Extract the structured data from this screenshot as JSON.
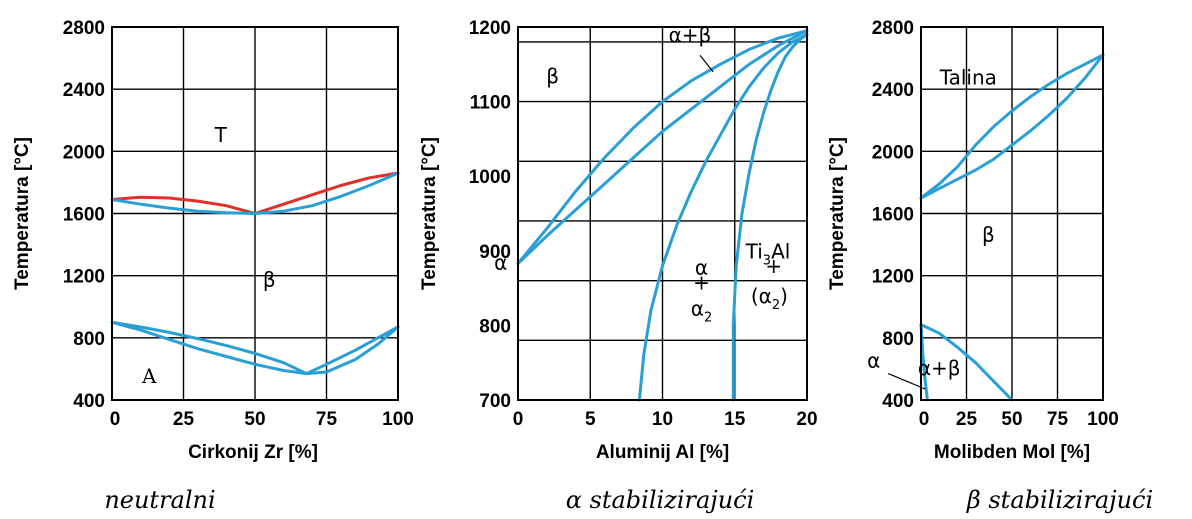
{
  "chart_data": [
    {
      "type": "line",
      "xlabel": "Cirkonij Zr [%]",
      "ylabel": "Temperatura [°C]",
      "xlim": [
        0,
        100
      ],
      "ylim": [
        400,
        2800
      ],
      "xticks": [
        0,
        25,
        50,
        75,
        100
      ],
      "xtick_labels": [
        "0",
        "25",
        "50",
        "75",
        "100"
      ],
      "yticks": [
        400,
        800,
        1200,
        1600,
        2000,
        2400,
        2800
      ],
      "ytick_labels": [
        "400",
        "800",
        "1200",
        "1600",
        "2000",
        "2400",
        "2800"
      ],
      "grid": true,
      "caption": "neutralni",
      "series": [
        {
          "color": "#e0302a",
          "x": [
            0,
            10,
            20,
            30,
            40,
            50,
            60,
            70,
            80,
            90,
            100
          ],
          "y": [
            1690,
            1705,
            1700,
            1680,
            1650,
            1600,
            1660,
            1720,
            1780,
            1830,
            1860
          ]
        },
        {
          "color": "#2a9fd6",
          "x": [
            0,
            10,
            20,
            30,
            40,
            50,
            60,
            70,
            80,
            90,
            100
          ],
          "y": [
            1690,
            1660,
            1635,
            1615,
            1605,
            1600,
            1615,
            1650,
            1710,
            1780,
            1860
          ]
        },
        {
          "color": "#2a9fd6",
          "x": [
            0,
            10,
            20,
            30,
            40,
            50,
            60,
            68,
            75,
            85,
            93,
            100
          ],
          "y": [
            900,
            870,
            835,
            795,
            750,
            700,
            640,
            570,
            630,
            720,
            800,
            870
          ]
        },
        {
          "color": "#2a9fd6",
          "x": [
            0,
            10,
            20,
            30,
            40,
            50,
            60,
            68,
            75,
            85,
            93,
            100
          ],
          "y": [
            900,
            850,
            790,
            730,
            680,
            630,
            590,
            570,
            580,
            660,
            760,
            870
          ]
        }
      ],
      "annotations": [
        {
          "text": "T",
          "x": 38,
          "y": 2060
        },
        {
          "text": "β",
          "x": 55,
          "y": 1130
        },
        {
          "text": "A",
          "x": 13,
          "y": 510
        }
      ]
    },
    {
      "type": "line",
      "xlabel": "Aluminij Al [%]",
      "ylabel": "Temperatura [°C]",
      "xlim": [
        0,
        20
      ],
      "ylim": [
        700,
        1200
      ],
      "xticks": [
        0,
        5,
        10,
        15,
        20
      ],
      "xtick_labels": [
        "0",
        "5",
        "10",
        "15",
        "20"
      ],
      "yticks": [
        700,
        800,
        900,
        1000,
        1100,
        1200
      ],
      "ytick_labels": [
        "700",
        "800",
        "900",
        "1000",
        "1100",
        "1200"
      ],
      "grid_y": [
        700,
        780,
        860,
        940,
        1020,
        1100,
        1180,
        1200
      ],
      "grid": true,
      "caption": "α stabilizirajući",
      "series": [
        {
          "color": "#2a9fd6",
          "x": [
            0,
            2,
            4,
            6,
            8,
            10,
            12,
            14,
            16,
            18,
            20
          ],
          "y": [
            883,
            930,
            980,
            1025,
            1065,
            1100,
            1128,
            1150,
            1170,
            1185,
            1195
          ]
        },
        {
          "color": "#2a9fd6",
          "x": [
            0,
            2,
            4,
            6,
            8,
            10,
            12,
            14,
            16,
            18,
            20
          ],
          "y": [
            883,
            920,
            955,
            990,
            1025,
            1060,
            1090,
            1120,
            1150,
            1175,
            1195
          ]
        },
        {
          "color": "#2a9fd6",
          "x": [
            8.4,
            8.7,
            9.2,
            10,
            11,
            12,
            13,
            14,
            15,
            16,
            17,
            18,
            19,
            20
          ],
          "y": [
            700,
            760,
            820,
            880,
            935,
            980,
            1020,
            1055,
            1090,
            1120,
            1145,
            1165,
            1180,
            1190
          ]
        },
        {
          "color": "#2a9fd6",
          "x": [
            14.9,
            14.9,
            15.1,
            15.5,
            16,
            16.5,
            17,
            17.5,
            18,
            18.5,
            19,
            19.5,
            20
          ],
          "y": [
            700,
            800,
            880,
            950,
            1005,
            1050,
            1085,
            1115,
            1140,
            1160,
            1173,
            1183,
            1190
          ]
        }
      ],
      "annotations": [
        {
          "text": "β",
          "x": 2.4,
          "y": 1125
        },
        {
          "text": "α+β",
          "x": 11.9,
          "y": 1180
        },
        {
          "text": "α",
          "x": -1.2,
          "y": 875
        },
        {
          "text": "α",
          "x": 12.7,
          "y": 868
        },
        {
          "text": "+",
          "x": 12.7,
          "y": 848
        },
        {
          "text": "α2",
          "x": 12.7,
          "y": 813
        },
        {
          "text": "Ti3Al",
          "x": 17.3,
          "y": 890
        },
        {
          "text": "+",
          "x": 17.7,
          "y": 870
        },
        {
          "text": "(α2)",
          "x": 17.4,
          "y": 830
        }
      ]
    },
    {
      "type": "line",
      "xlabel": "Molibden Mol [%]",
      "ylabel": "Temperatura [°C]",
      "xlim": [
        0,
        100
      ],
      "ylim": [
        400,
        2800
      ],
      "xticks": [
        0,
        25,
        50,
        75,
        100
      ],
      "xtick_labels": [
        "0",
        "25",
        "50",
        "75",
        "100"
      ],
      "yticks": [
        400,
        800,
        1200,
        1600,
        2000,
        2400,
        2800
      ],
      "ytick_labels": [
        "400",
        "800",
        "1200",
        "1600",
        "2000",
        "2400",
        "2800"
      ],
      "grid": true,
      "caption": "β stabilizirajući",
      "series": [
        {
          "color": "#2a9fd6",
          "x": [
            0,
            10,
            20,
            30,
            40,
            50,
            60,
            70,
            80,
            90,
            100
          ],
          "y": [
            1700,
            1790,
            1900,
            2040,
            2160,
            2260,
            2350,
            2430,
            2500,
            2560,
            2620
          ]
        },
        {
          "color": "#2a9fd6",
          "x": [
            0,
            10,
            20,
            30,
            40,
            50,
            60,
            70,
            80,
            90,
            100
          ],
          "y": [
            1700,
            1760,
            1820,
            1880,
            1950,
            2040,
            2130,
            2230,
            2340,
            2470,
            2620
          ]
        },
        {
          "color": "#2a9fd6",
          "x": [
            0,
            10,
            20,
            30,
            40,
            50
          ],
          "y": [
            885,
            830,
            740,
            640,
            520,
            400
          ]
        },
        {
          "color": "#2a9fd6",
          "x": [
            0,
            1,
            2,
            3,
            3.5
          ],
          "y": [
            885,
            700,
            560,
            450,
            400
          ]
        }
      ],
      "annotations": [
        {
          "text": "Talina",
          "x": 26,
          "y": 2430
        },
        {
          "text": "β",
          "x": 37,
          "y": 1420
        },
        {
          "text": "α+β",
          "x": 10,
          "y": 560
        },
        {
          "text": "α",
          "x": -26,
          "y": 610
        }
      ]
    }
  ]
}
